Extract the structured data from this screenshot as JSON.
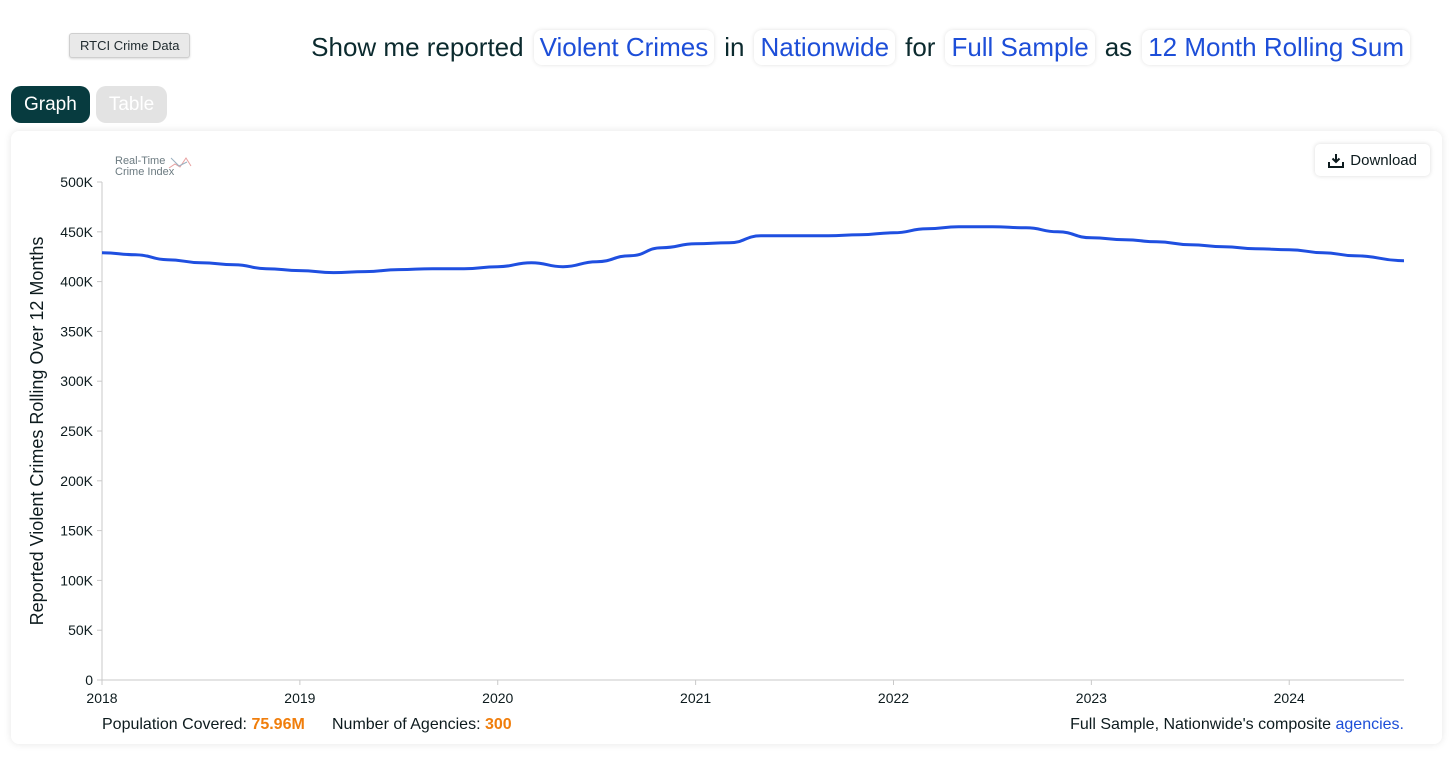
{
  "app_label": "RTCI Crime Data",
  "query": {
    "prefix": "Show me reported",
    "crime": "Violent Crimes",
    "in_word": "in",
    "location": "Nationwide",
    "for_word": "for",
    "sample": "Full Sample",
    "as_word": "as",
    "measure": "12 Month Rolling Sum"
  },
  "tabs": [
    {
      "label": "Graph",
      "active": true
    },
    {
      "label": "Table",
      "active": false
    }
  ],
  "download_label": "Download",
  "logo": {
    "line1": "Real-Time",
    "line2": "Crime Index"
  },
  "footer": {
    "population_label": "Population Covered:",
    "population_value": "75.96M",
    "agencies_label": "Number of Agencies:",
    "agencies_value": "300",
    "composite_text": "Full Sample, Nationwide's composite",
    "composite_link": "agencies."
  },
  "colors": {
    "line": "#1f4fe0",
    "accent": "#f07e0c",
    "brand": "#073b3f"
  },
  "chart_data": {
    "type": "line",
    "ylabel": "Reported Violent Crimes Rolling Over 12 Months",
    "ylim": [
      0,
      500000
    ],
    "xlim": [
      2018.0,
      2024.58
    ],
    "y_ticks": [
      0,
      50000,
      100000,
      150000,
      200000,
      250000,
      300000,
      350000,
      400000,
      450000,
      500000
    ],
    "y_tick_labels": [
      "0",
      "50K",
      "100K",
      "150K",
      "200K",
      "250K",
      "300K",
      "350K",
      "400K",
      "450K",
      "500K"
    ],
    "x_ticks": [
      2018,
      2019,
      2020,
      2021,
      2022,
      2023,
      2024
    ],
    "x_tick_labels": [
      "2018",
      "2019",
      "2020",
      "2021",
      "2022",
      "2023",
      "2024"
    ],
    "grid": false,
    "series": [
      {
        "x": [
          2018.0,
          2018.17,
          2018.33,
          2018.5,
          2018.67,
          2018.83,
          2019.0,
          2019.17,
          2019.33,
          2019.5,
          2019.67,
          2019.83,
          2020.0,
          2020.17,
          2020.33,
          2020.5,
          2020.67,
          2020.83,
          2021.0,
          2021.17,
          2021.33,
          2021.5,
          2021.67,
          2021.83,
          2022.0,
          2022.17,
          2022.33,
          2022.5,
          2022.67,
          2022.83,
          2023.0,
          2023.17,
          2023.33,
          2023.5,
          2023.67,
          2023.83,
          2024.0,
          2024.17,
          2024.33,
          2024.58
        ],
        "values": [
          429000,
          427000,
          422000,
          419000,
          417000,
          413000,
          411000,
          409000,
          410000,
          412000,
          413000,
          413000,
          415000,
          419000,
          415000,
          420000,
          426000,
          434000,
          438000,
          439000,
          446000,
          446000,
          446000,
          447000,
          449000,
          453000,
          455000,
          455000,
          454000,
          450000,
          444000,
          442000,
          440000,
          437000,
          435000,
          433000,
          432000,
          429000,
          426000,
          421000
        ]
      }
    ]
  }
}
